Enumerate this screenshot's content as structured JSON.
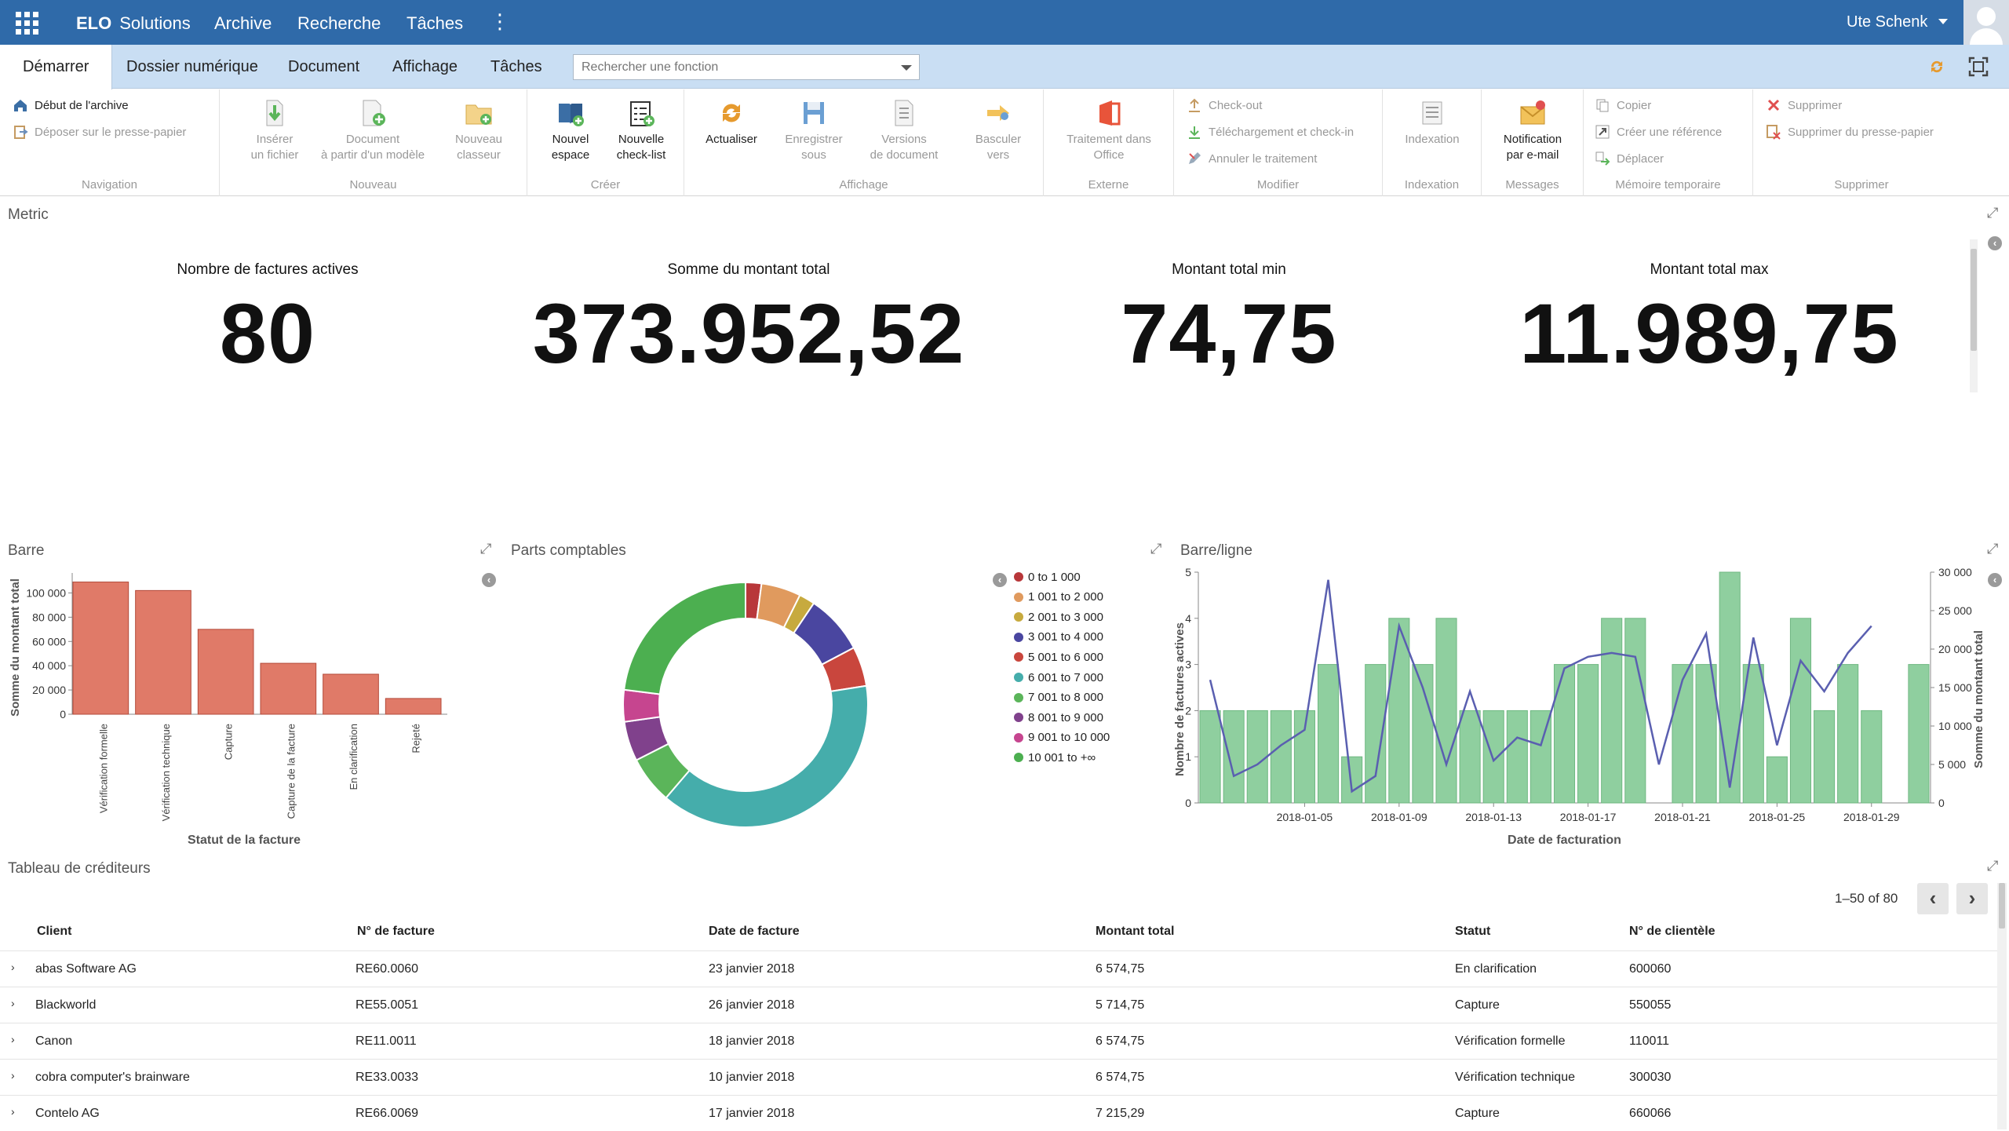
{
  "topbar": {
    "brand": "ELO",
    "brand_sub": "Solutions",
    "nav": [
      "Archive",
      "Recherche",
      "Tâches"
    ],
    "user": "Ute Schenk"
  },
  "tabs": [
    "Démarrer",
    "Dossier numérique",
    "Document",
    "Affichage",
    "Tâches"
  ],
  "function_search_placeholder": "Rechercher une fonction",
  "ribbon": {
    "navigation": {
      "label": "Navigation",
      "start_archive": "Début de l'archive",
      "drop_clipboard": "Déposer sur le presse-papier"
    },
    "nouveau": {
      "label": "Nouveau",
      "insert_file_1": "Insérer",
      "insert_file_2": "un fichier",
      "doc_model_1": "Document",
      "doc_model_2": "à partir d'un modèle",
      "new_folder_1": "Nouveau",
      "new_folder_2": "classeur"
    },
    "creer": {
      "label": "Créer",
      "new_space_1": "Nouvel",
      "new_space_2": "espace",
      "new_checklist_1": "Nouvelle",
      "new_checklist_2": "check-list"
    },
    "affichage": {
      "label": "Affichage",
      "refresh": "Actualiser",
      "save_as_1": "Enregistrer",
      "save_as_2": "sous",
      "versions_1": "Versions",
      "versions_2": "de document",
      "switch_1": "Basculer",
      "switch_2": "vers"
    },
    "externe": {
      "label": "Externe",
      "office_1": "Traitement dans",
      "office_2": "Office"
    },
    "modifier": {
      "label": "Modifier",
      "checkout": "Check-out",
      "checkin": "Téléchargement et check-in",
      "cancel": "Annuler le traitement"
    },
    "indexation": {
      "label": "Indexation",
      "indexation": "Indexation"
    },
    "messages": {
      "label": "Messages",
      "notif_1": "Notification",
      "notif_2": "par e-mail"
    },
    "memoire": {
      "label": "Mémoire temporaire",
      "copy": "Copier",
      "ref": "Créer une référence",
      "move": "Déplacer"
    },
    "supprimer": {
      "label": "Supprimer",
      "delete": "Supprimer",
      "delete_clip": "Supprimer du presse-papier"
    }
  },
  "metric": {
    "title": "Metric",
    "items": [
      {
        "label": "Nombre de factures actives",
        "value": "80"
      },
      {
        "label": "Somme du montant total",
        "value": "373.952,52"
      },
      {
        "label": "Montant total min",
        "value": "74,75"
      },
      {
        "label": "Montant total max",
        "value": "11.989,75"
      }
    ]
  },
  "panels": {
    "bar": "Barre",
    "donut": "Parts comptables",
    "barline": "Barre/ligne",
    "table": "Tableau de créditeurs"
  },
  "colors": {
    "topbar": "#2f6aa9",
    "tabbar": "#c9def3",
    "bar_red": "#e07a68",
    "bar_green": "#8fcf9f",
    "line_purple": "#5a5fb0"
  },
  "chart_data": [
    {
      "type": "bar",
      "title": "Barre",
      "xlabel": "Statut de la facture",
      "ylabel": "Somme du montant total",
      "categories": [
        "Vérification formelle",
        "Vérification technique",
        "Capture",
        "Capture de la facture",
        "En clarification",
        "Rejeté"
      ],
      "values": [
        109000,
        102000,
        70000,
        42000,
        33000,
        13000
      ],
      "ylim": [
        0,
        110000
      ],
      "yticks": [
        "0",
        "20 000",
        "40 000",
        "60 000",
        "80 000",
        "100 000"
      ],
      "ytick_values": [
        0,
        20000,
        40000,
        60000,
        80000,
        100000
      ]
    },
    {
      "type": "pie",
      "title": "Parts comptables",
      "legend": [
        {
          "label": "0 to 1 000",
          "color": "#b8373a",
          "value": 2
        },
        {
          "label": "1 001 to 2 000",
          "color": "#e09a5e",
          "value": 5
        },
        {
          "label": "2 001 to 3 000",
          "color": "#c7aa3e",
          "value": 2
        },
        {
          "label": "3 001 to 4 000",
          "color": "#4a46a0",
          "value": 7.5
        },
        {
          "label": "5 001 to 6 000",
          "color": "#c9463d",
          "value": 5
        },
        {
          "label": "6 001 to 7 000",
          "color": "#45adab",
          "value": 37
        },
        {
          "label": "7 001 to 8 000",
          "color": "#5bb55a",
          "value": 6
        },
        {
          "label": "8 001 to 9 000",
          "color": "#80418c",
          "value": 5
        },
        {
          "label": "9 001 to 10 000",
          "color": "#c6458f",
          "value": 4
        },
        {
          "label": "10 001 to +∞",
          "color": "#4caf50",
          "value": 22
        }
      ]
    },
    {
      "type": "bar",
      "title": "Barre/ligne",
      "xlabel": "Date de facturation",
      "ylabel": "Nombre de factures actives",
      "y2label": "Somme du montant total",
      "ylim": [
        0,
        5
      ],
      "y2lim": [
        0,
        30000
      ],
      "yticks": [
        "0",
        "1",
        "2",
        "3",
        "4",
        "5"
      ],
      "y2ticks": [
        "0",
        "5 000",
        "10 000",
        "15 000",
        "20 000",
        "25 000",
        "30 000"
      ],
      "xticks": [
        "2018-01-05",
        "2018-01-09",
        "2018-01-13",
        "2018-01-17",
        "2018-01-21",
        "2018-01-25",
        "2018-01-29"
      ],
      "xtick_days": [
        5,
        9,
        13,
        17,
        21,
        25,
        29
      ],
      "x_days": [
        1,
        2,
        3,
        4,
        5,
        6,
        7,
        8,
        9,
        10,
        11,
        12,
        13,
        14,
        15,
        16,
        17,
        18,
        19,
        20,
        21,
        22,
        23,
        24,
        25,
        26,
        27,
        28,
        29,
        30,
        31
      ],
      "bars": [
        2,
        2,
        2,
        2,
        2,
        3,
        1,
        3,
        4,
        3,
        4,
        2,
        2,
        2,
        2,
        3,
        3,
        4,
        4,
        0,
        3,
        3,
        5,
        3,
        1,
        4,
        2,
        3,
        2,
        0,
        3
      ],
      "line": [
        16000,
        3500,
        5000,
        7500,
        9500,
        29000,
        1500,
        3500,
        23000,
        15000,
        5000,
        14500,
        5500,
        8500,
        7500,
        17500,
        19000,
        19500,
        19000,
        5000,
        16000,
        22000,
        2000,
        21500,
        7500,
        18500,
        14500,
        19500,
        23000,
        null,
        null
      ]
    }
  ],
  "table": {
    "pager": "1–50 of 80",
    "columns": [
      "Client",
      "N° de facture",
      "Date de facture",
      "Montant total",
      "Statut",
      "N° de clientèle"
    ],
    "rows": [
      [
        "abas Software AG",
        "RE60.0060",
        "23 janvier 2018",
        "6 574,75",
        "En clarification",
        "600060"
      ],
      [
        "Blackworld",
        "RE55.0051",
        "26 janvier 2018",
        "5 714,75",
        "Capture",
        "550055"
      ],
      [
        "Canon",
        "RE11.0011",
        "18 janvier 2018",
        "6 574,75",
        "Vérification formelle",
        "110011"
      ],
      [
        "cobra computer's brainware",
        "RE33.0033",
        "10 janvier 2018",
        "6 574,75",
        "Vérification technique",
        "300030"
      ],
      [
        "Contelo AG",
        "RE66.0069",
        "17 janvier 2018",
        "7 215,29",
        "Capture",
        "660066"
      ]
    ]
  }
}
